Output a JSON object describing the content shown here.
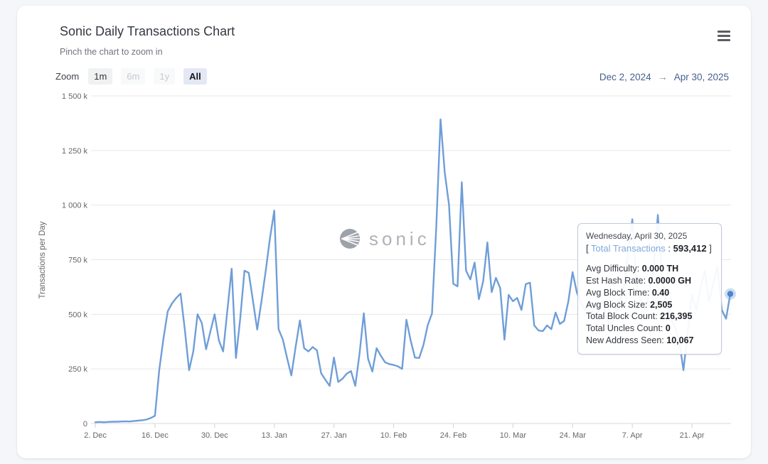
{
  "header": {
    "title": "Sonic Daily Transactions Chart",
    "subtitle": "Pinch the chart to zoom in"
  },
  "toolbar": {
    "zoom_label": "Zoom",
    "zoom_buttons": [
      {
        "label": "1m",
        "state": "default"
      },
      {
        "label": "6m",
        "state": "disabled"
      },
      {
        "label": "1y",
        "state": "disabled"
      },
      {
        "label": "All",
        "state": "selected"
      }
    ],
    "date_range": {
      "from": "Dec 2, 2024",
      "arrow": "→",
      "to": "Apr 30, 2025"
    }
  },
  "watermark": {
    "icon": "sonic-logo-icon",
    "text": "sonic"
  },
  "tooltip": {
    "date": "Wednesday, April 30, 2025",
    "bracket_open": "[ ",
    "total_label": "Total Transactions",
    "total_sep": " : ",
    "total_value": "593,412",
    "bracket_close": " ]",
    "stats": [
      {
        "label": "Avg Difficulty: ",
        "value": "0.000 TH"
      },
      {
        "label": "Est Hash Rate: ",
        "value": "0.0000 GH"
      },
      {
        "label": "Avg Block Time: ",
        "value": "0.40"
      },
      {
        "label": "Avg Block Size: ",
        "value": "2,505"
      },
      {
        "label": "Total Block Count: ",
        "value": "216,395"
      },
      {
        "label": "Total Uncles Count: ",
        "value": "0"
      },
      {
        "label": "New Address Seen: ",
        "value": "10,067"
      }
    ]
  },
  "colors": {
    "line": "#6f9ed8",
    "marker": "#4d86cf",
    "accent_blue": "#7fa9dc",
    "grid": "#e7e7e7",
    "axis_line": "#d6d9de",
    "tick": "#cfd2d6",
    "axis_text": "#666666",
    "range_text": "#46618e"
  },
  "chart_data": {
    "type": "line",
    "title": "Sonic Daily Transactions Chart",
    "series_name": "Total Transactions",
    "xlabel": "",
    "ylabel": "Transactions per Day",
    "y_unit": "k (thousands of transactions per day)",
    "ylim": [
      0,
      1500
    ],
    "grid": "horizontal-only",
    "legend": "none",
    "x_start_label": "Dec 2, 2024",
    "x_end_label": "Apr 30, 2025",
    "y_ticks": [
      {
        "v": 0,
        "label": "0"
      },
      {
        "v": 250,
        "label": "250 k"
      },
      {
        "v": 500,
        "label": "500 k"
      },
      {
        "v": 750,
        "label": "750 k"
      },
      {
        "v": 1000,
        "label": "1 000 k"
      },
      {
        "v": 1250,
        "label": "1 250 k"
      },
      {
        "v": 1500,
        "label": "1 500 k"
      }
    ],
    "x_ticks": [
      {
        "day": 0,
        "label": "2. Dec"
      },
      {
        "day": 14,
        "label": "16. Dec"
      },
      {
        "day": 28,
        "label": "30. Dec"
      },
      {
        "day": 42,
        "label": "13. Jan"
      },
      {
        "day": 56,
        "label": "27. Jan"
      },
      {
        "day": 70,
        "label": "10. Feb"
      },
      {
        "day": 84,
        "label": "24. Feb"
      },
      {
        "day": 98,
        "label": "10. Mar"
      },
      {
        "day": 112,
        "label": "24. Mar"
      },
      {
        "day": 126,
        "label": "7. Apr"
      },
      {
        "day": 140,
        "label": "21. Apr"
      }
    ],
    "values_k": [
      6,
      7,
      6,
      7,
      8,
      8,
      9,
      10,
      9,
      11,
      13,
      15,
      18,
      25,
      35,
      244,
      390,
      514,
      550,
      575,
      595,
      430,
      244,
      330,
      500,
      460,
      340,
      420,
      500,
      380,
      330,
      520,
      709,
      300,
      480,
      700,
      690,
      560,
      430,
      560,
      700,
      850,
      975,
      432,
      385,
      300,
      220,
      350,
      472,
      345,
      330,
      350,
      335,
      230,
      200,
      172,
      302,
      190,
      205,
      228,
      240,
      172,
      320,
      505,
      296,
      238,
      345,
      310,
      280,
      272,
      268,
      262,
      250,
      475,
      380,
      302,
      300,
      360,
      450,
      504,
      900,
      1393,
      1150,
      1002,
      640,
      628,
      1105,
      700,
      660,
      737,
      569,
      650,
      829,
      602,
      667,
      620,
      384,
      589,
      560,
      575,
      520,
      638,
      645,
      449,
      426,
      423,
      449,
      432,
      508,
      456,
      470,
      560,
      693,
      600,
      550,
      520,
      560,
      480,
      520,
      560,
      480,
      450,
      500,
      560,
      620,
      780,
      935,
      640,
      560,
      520,
      600,
      700,
      955,
      680,
      560,
      480,
      440,
      380,
      244,
      420,
      590,
      520,
      620,
      700,
      560,
      640,
      720,
      520,
      480,
      593.412
    ],
    "last_point": {
      "date": "Wednesday, April 30, 2025",
      "total_transactions": 593412
    }
  }
}
